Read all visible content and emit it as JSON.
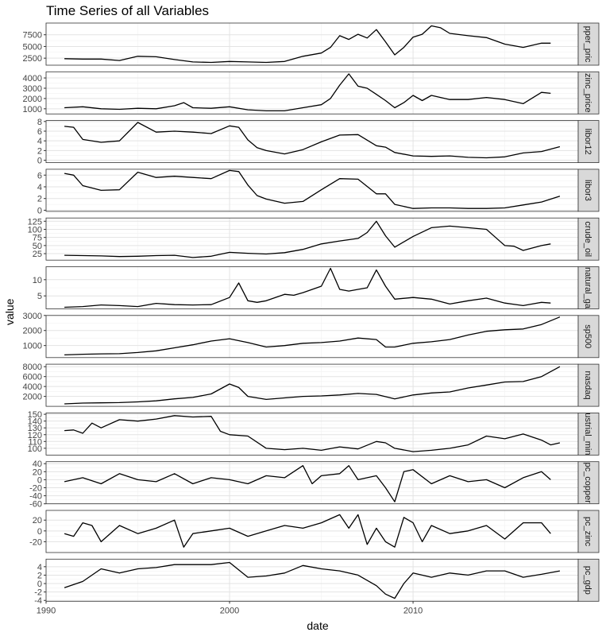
{
  "chart_data": {
    "type": "line",
    "title": "Time Series of all Variables",
    "xlabel": "date",
    "ylabel": "value",
    "x_ticks": [
      1990,
      2000,
      2010
    ],
    "x_range": [
      1990,
      2019
    ],
    "grid": true,
    "facet_strip_position": "right",
    "panels": [
      {
        "name": "copper_price",
        "strip": "pper_pric",
        "ylim": [
          1000,
          10000
        ],
        "ticks": [
          2500,
          5000,
          7500
        ],
        "x": [
          1991,
          1992,
          1993,
          1994,
          1995,
          1996,
          1997,
          1998,
          1999,
          2000,
          2001,
          2002,
          2003,
          2004,
          2005,
          2005.5,
          2006,
          2006.5,
          2007,
          2007.5,
          2008,
          2008.5,
          2009,
          2009.5,
          2010,
          2010.5,
          2011,
          2011.5,
          2012,
          2013,
          2014,
          2015,
          2016,
          2017,
          2017.5
        ],
        "values": [
          2400,
          2300,
          2300,
          2000,
          2900,
          2800,
          2200,
          1700,
          1600,
          1800,
          1700,
          1600,
          1800,
          2900,
          3600,
          4800,
          7300,
          6500,
          7600,
          6800,
          8600,
          6000,
          3200,
          4800,
          7000,
          7600,
          9400,
          9000,
          7800,
          7300,
          6900,
          5500,
          4800,
          5700,
          5700
        ]
      },
      {
        "name": "zinc_price",
        "strip": "zinc_price",
        "ylim": [
          500,
          4600
        ],
        "ticks": [
          1000,
          2000,
          3000,
          4000
        ],
        "x": [
          1991,
          1992,
          1993,
          1994,
          1995,
          1996,
          1997,
          1997.5,
          1998,
          1999,
          2000,
          2001,
          2002,
          2003,
          2004,
          2005,
          2005.5,
          2006,
          2006.5,
          2007,
          2007.5,
          2008,
          2008.5,
          2009,
          2009.5,
          2010,
          2010.5,
          2011,
          2012,
          2013,
          2014,
          2015,
          2016,
          2017,
          2017.5
        ],
        "values": [
          1100,
          1200,
          1000,
          950,
          1050,
          1000,
          1300,
          1600,
          1100,
          1050,
          1200,
          900,
          800,
          800,
          1100,
          1400,
          2000,
          3300,
          4400,
          3200,
          3000,
          2400,
          1800,
          1100,
          1600,
          2300,
          1800,
          2300,
          1900,
          1900,
          2100,
          1900,
          1500,
          2600,
          2500
        ]
      },
      {
        "name": "libor12",
        "strip": "libor12",
        "ylim": [
          -0.5,
          8.2
        ],
        "ticks": [
          0,
          2,
          4,
          6,
          8
        ],
        "x": [
          1991,
          1991.5,
          1992,
          1993,
          1994,
          1995,
          1996,
          1997,
          1998,
          1999,
          2000,
          2000.5,
          2001,
          2001.5,
          2002,
          2003,
          2004,
          2005,
          2006,
          2007,
          2008,
          2008.5,
          2009,
          2010,
          2011,
          2012,
          2013,
          2014,
          2015,
          2016,
          2017,
          2018
        ],
        "values": [
          7.0,
          6.8,
          4.3,
          3.7,
          4.0,
          7.8,
          5.8,
          6.0,
          5.8,
          5.5,
          7.1,
          6.8,
          4.2,
          2.6,
          2.0,
          1.3,
          2.2,
          3.8,
          5.2,
          5.3,
          3.0,
          2.7,
          1.6,
          0.9,
          0.8,
          0.9,
          0.6,
          0.5,
          0.7,
          1.5,
          1.8,
          2.8
        ]
      },
      {
        "name": "libor3",
        "strip": "libor3",
        "ylim": [
          -0.2,
          7.0
        ],
        "ticks": [
          0,
          2,
          4,
          6
        ],
        "x": [
          1991,
          1991.5,
          1992,
          1993,
          1994,
          1995,
          1996,
          1997,
          1998,
          1999,
          2000,
          2000.5,
          2001,
          2001.5,
          2002,
          2003,
          2004,
          2005,
          2006,
          2007,
          2008,
          2008.5,
          2009,
          2010,
          2011,
          2012,
          2013,
          2014,
          2015,
          2016,
          2017,
          2018
        ],
        "values": [
          6.3,
          6.0,
          4.2,
          3.4,
          3.5,
          6.5,
          5.6,
          5.8,
          5.6,
          5.4,
          6.8,
          6.6,
          4.3,
          2.5,
          1.9,
          1.2,
          1.5,
          3.5,
          5.4,
          5.3,
          2.8,
          2.8,
          1.0,
          0.3,
          0.4,
          0.4,
          0.3,
          0.3,
          0.4,
          0.9,
          1.4,
          2.4
        ]
      },
      {
        "name": "crude_oil",
        "strip": "crude_oil",
        "ylim": [
          5,
          135
        ],
        "ticks": [
          25,
          50,
          75,
          100,
          125
        ],
        "x": [
          1991,
          1992,
          1993,
          1994,
          1995,
          1996,
          1997,
          1998,
          1999,
          2000,
          2001,
          2002,
          2003,
          2004,
          2005,
          2006,
          2007,
          2007.5,
          2008,
          2008.5,
          2009,
          2010,
          2011,
          2012,
          2013,
          2014,
          2014.5,
          2015,
          2015.5,
          2016,
          2017,
          2017.5
        ],
        "values": [
          20,
          19,
          18,
          16,
          17,
          19,
          20,
          13,
          17,
          29,
          26,
          24,
          28,
          38,
          55,
          64,
          72,
          90,
          125,
          80,
          45,
          78,
          105,
          110,
          105,
          100,
          75,
          50,
          48,
          35,
          50,
          55
        ]
      },
      {
        "name": "natural_gas",
        "strip": "natural_ga",
        "ylim": [
          1,
          14
        ],
        "ticks": [
          5,
          10
        ],
        "x": [
          1991,
          1992,
          1993,
          1994,
          1995,
          1996,
          1997,
          1998,
          1999,
          2000,
          2000.5,
          2001,
          2001.5,
          2002,
          2003,
          2003.5,
          2004,
          2005,
          2005.5,
          2006,
          2006.5,
          2007,
          2007.5,
          2008,
          2008.5,
          2009,
          2010,
          2011,
          2012,
          2013,
          2014,
          2015,
          2016,
          2017,
          2017.5
        ],
        "values": [
          1.5,
          1.7,
          2.2,
          2.0,
          1.7,
          2.7,
          2.3,
          2.2,
          2.3,
          4.5,
          9.0,
          3.5,
          3.0,
          3.5,
          5.5,
          5.2,
          6.0,
          8.0,
          13.5,
          7.0,
          6.5,
          7.0,
          7.5,
          13.0,
          8.0,
          4.0,
          4.5,
          4.0,
          2.5,
          3.5,
          4.3,
          2.8,
          2.0,
          3.0,
          2.8
        ]
      },
      {
        "name": "sp500",
        "strip": "sp500",
        "ylim": [
          200,
          3000
        ],
        "ticks": [
          1000,
          2000,
          3000
        ],
        "x": [
          1991,
          1992,
          1993,
          1994,
          1995,
          1996,
          1997,
          1998,
          1999,
          2000,
          2001,
          2002,
          2003,
          2004,
          2005,
          2006,
          2007,
          2008,
          2008.5,
          2009,
          2010,
          2011,
          2012,
          2013,
          2014,
          2015,
          2016,
          2017,
          2018
        ],
        "values": [
          380,
          420,
          450,
          460,
          540,
          650,
          850,
          1050,
          1300,
          1450,
          1200,
          900,
          1000,
          1150,
          1200,
          1300,
          1500,
          1400,
          900,
          900,
          1150,
          1250,
          1400,
          1700,
          1950,
          2050,
          2100,
          2400,
          2900
        ]
      },
      {
        "name": "nasdaq",
        "strip": "nasdaq",
        "ylim": [
          0,
          8500
        ],
        "ticks": [
          2000,
          4000,
          6000,
          8000
        ],
        "x": [
          1991,
          1992,
          1993,
          1994,
          1995,
          1996,
          1997,
          1998,
          1999,
          2000,
          2000.5,
          2001,
          2002,
          2003,
          2004,
          2005,
          2006,
          2007,
          2008,
          2009,
          2010,
          2011,
          2012,
          2013,
          2014,
          2015,
          2016,
          2017,
          2018
        ],
        "values": [
          500,
          650,
          700,
          750,
          900,
          1100,
          1500,
          1800,
          2500,
          4500,
          3800,
          2000,
          1400,
          1700,
          2000,
          2100,
          2300,
          2600,
          2400,
          1500,
          2300,
          2700,
          2900,
          3700,
          4300,
          4900,
          5000,
          6000,
          8000
        ]
      },
      {
        "name": "industrial_mining",
        "strip": "ustrial_min",
        "ylim": [
          90,
          152
        ],
        "ticks": [
          100,
          110,
          120,
          130,
          140,
          150
        ],
        "x": [
          1991,
          1991.5,
          1992,
          1992.5,
          1993,
          1994,
          1995,
          1996,
          1997,
          1998,
          1999,
          1999.5,
          2000,
          2001,
          2002,
          2003,
          2004,
          2005,
          2006,
          2007,
          2008,
          2008.5,
          2009,
          2010,
          2011,
          2012,
          2013,
          2014,
          2015,
          2016,
          2017,
          2017.5,
          2018
        ],
        "values": [
          126,
          127,
          122,
          137,
          130,
          142,
          140,
          143,
          148,
          146,
          147,
          125,
          120,
          118,
          100,
          98,
          100,
          97,
          102,
          99,
          110,
          108,
          100,
          95,
          97,
          100,
          105,
          118,
          114,
          121,
          112,
          105,
          108
        ]
      },
      {
        "name": "pc_copper",
        "strip": "pc_copper",
        "ylim": [
          -60,
          45
        ],
        "ticks": [
          -60,
          -40,
          -20,
          0,
          20,
          40
        ],
        "x": [
          1991,
          1992,
          1993,
          1994,
          1995,
          1996,
          1997,
          1998,
          1999,
          2000,
          2001,
          2002,
          2003,
          2004,
          2004.5,
          2005,
          2006,
          2006.5,
          2007,
          2008,
          2008.5,
          2009,
          2009.5,
          2010,
          2011,
          2012,
          2013,
          2014,
          2015,
          2016,
          2017,
          2017.5
        ],
        "values": [
          -5,
          5,
          -10,
          15,
          0,
          -5,
          15,
          -10,
          5,
          0,
          -10,
          10,
          5,
          35,
          -10,
          10,
          15,
          35,
          0,
          10,
          -20,
          -55,
          20,
          25,
          -10,
          10,
          -5,
          0,
          -20,
          5,
          20,
          0
        ]
      },
      {
        "name": "pc_zinc",
        "strip": "pc_zinc",
        "ylim": [
          -40,
          38
        ],
        "ticks": [
          -20,
          0,
          20
        ],
        "x": [
          1991,
          1991.5,
          1992,
          1992.5,
          1993,
          1994,
          1995,
          1996,
          1997,
          1997.5,
          1998,
          1999,
          2000,
          2001,
          2002,
          2003,
          2004,
          2005,
          2006,
          2006.5,
          2007,
          2007.5,
          2008,
          2008.5,
          2009,
          2009.5,
          2010,
          2010.5,
          2011,
          2012,
          2013,
          2014,
          2015,
          2016,
          2017,
          2017.5
        ],
        "values": [
          -5,
          -10,
          15,
          10,
          -20,
          10,
          -5,
          5,
          20,
          -30,
          -5,
          0,
          5,
          -10,
          0,
          10,
          5,
          15,
          30,
          5,
          30,
          -25,
          5,
          -20,
          -30,
          25,
          15,
          -20,
          10,
          -5,
          0,
          10,
          -15,
          15,
          15,
          -5
        ]
      },
      {
        "name": "pc_gdp",
        "strip": "pc_gdp",
        "ylim": [
          -4.2,
          5.8
        ],
        "ticks": [
          -4,
          -2,
          0,
          2,
          4
        ],
        "x": [
          1991,
          1992,
          1993,
          1994,
          1995,
          1996,
          1997,
          1998,
          1999,
          2000,
          2001,
          2002,
          2003,
          2004,
          2005,
          2006,
          2007,
          2008,
          2008.5,
          2009,
          2009.5,
          2010,
          2011,
          2012,
          2013,
          2014,
          2015,
          2016,
          2017,
          2018
        ],
        "values": [
          -1.0,
          0.5,
          3.5,
          2.5,
          3.5,
          3.8,
          4.5,
          4.5,
          4.5,
          5.0,
          1.5,
          1.8,
          2.5,
          4.3,
          3.5,
          3.0,
          2.0,
          -0.5,
          -2.5,
          -3.5,
          0.0,
          2.5,
          1.5,
          2.5,
          2.0,
          3.0,
          3.0,
          1.5,
          2.2,
          3.0
        ]
      }
    ]
  }
}
